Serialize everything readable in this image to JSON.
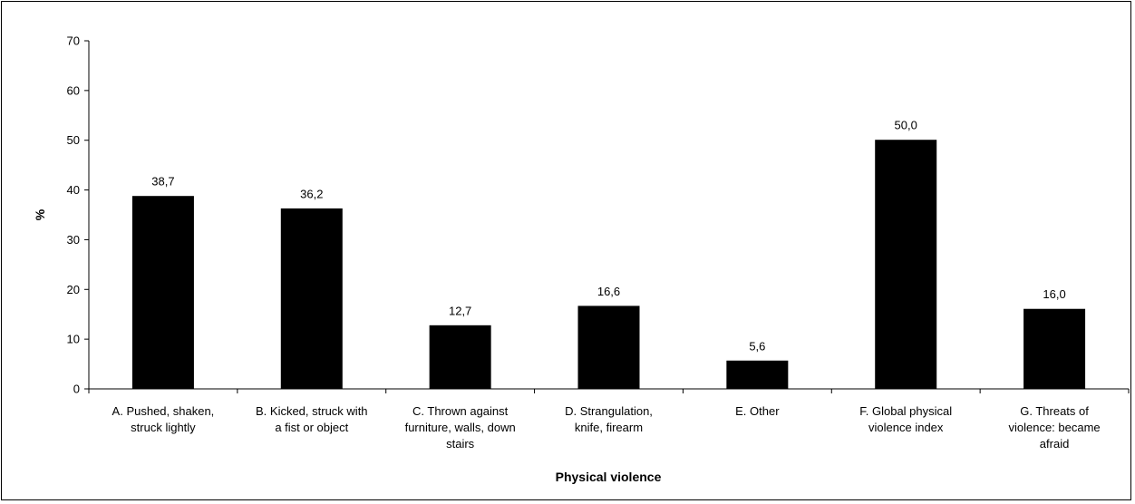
{
  "chart_data": {
    "type": "bar",
    "xlabel": "Physical violence",
    "ylabel": "%",
    "ylim": [
      0,
      70
    ],
    "yticks": [
      "0",
      "10",
      "20",
      "30",
      "40",
      "50",
      "60",
      "70"
    ],
    "grid": false,
    "legend": "none",
    "bar_color": "#000000",
    "categories": [
      [
        "A. Pushed, shaken,",
        "struck lightly"
      ],
      [
        "B. Kicked, struck with",
        "a fist or object"
      ],
      [
        "C. Thrown against",
        "furniture, walls, down",
        "stairs"
      ],
      [
        "D. Strangulation,",
        "knife, firearm"
      ],
      [
        "E. Other"
      ],
      [
        "F. Global physical",
        "violence index"
      ],
      [
        "G. Threats of",
        "violence: became",
        "afraid"
      ]
    ],
    "values": [
      38.7,
      36.2,
      12.7,
      16.6,
      5.6,
      50.0,
      16.0
    ],
    "value_labels": [
      "38,7",
      "36,2",
      "12,7",
      "16,6",
      "5,6",
      "50,0",
      "16,0"
    ]
  }
}
